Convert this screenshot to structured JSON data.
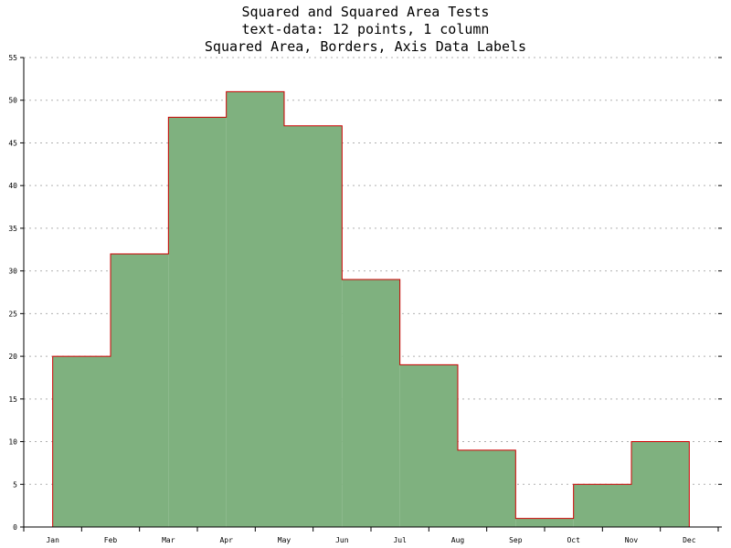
{
  "chart_data": {
    "type": "area",
    "title_lines": [
      "Squared and Squared Area Tests",
      "text-data: 12 points, 1 column",
      "Squared Area, Borders, Axis Data Labels"
    ],
    "categories": [
      "Jan",
      "Feb",
      "Mar",
      "Apr",
      "May",
      "Jun",
      "Jul",
      "Aug",
      "Sep",
      "Oct",
      "Nov",
      "Dec"
    ],
    "series": [
      {
        "values": [
          20,
          32,
          48,
          51,
          47,
          29,
          19,
          9,
          1,
          5,
          10,
          null
        ]
      }
    ],
    "ylim": [
      0,
      55
    ],
    "yticks": [
      0,
      5,
      10,
      15,
      20,
      25,
      30,
      35,
      40,
      45,
      50,
      55
    ],
    "grid": true,
    "step": "squared",
    "colors": {
      "fill": "#7fb17f",
      "border": "#cc0000",
      "grid": "#b0b0b0",
      "axis": "#000000"
    }
  }
}
